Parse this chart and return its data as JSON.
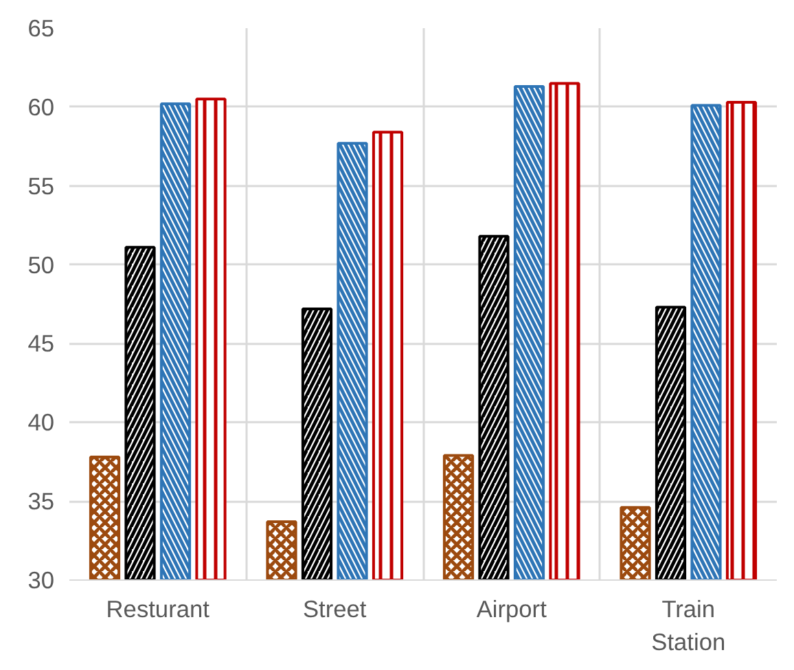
{
  "chart_data": {
    "type": "bar",
    "categories": [
      "Resturant",
      "Street",
      "Airport",
      "Train Station"
    ],
    "series": [
      {
        "color": "#9c4a0f",
        "values": [
          37.8,
          33.7,
          37.9,
          34.6
        ]
      },
      {
        "color": "#000000",
        "values": [
          51.1,
          47.2,
          51.8,
          47.3
        ]
      },
      {
        "color": "#2e75b6",
        "values": [
          60.2,
          57.7,
          61.3,
          60.1
        ]
      },
      {
        "color": "#c00000",
        "values": [
          60.5,
          58.4,
          61.5,
          60.3
        ]
      }
    ],
    "ylim": [
      30,
      65
    ],
    "yticks": [
      30,
      35,
      40,
      45,
      50,
      55,
      60,
      65
    ],
    "grid": true
  }
}
